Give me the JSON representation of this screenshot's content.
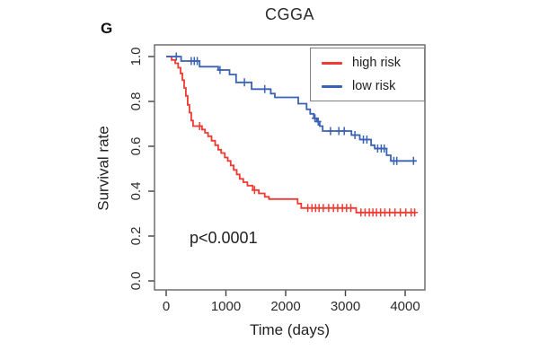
{
  "panel_label": "G",
  "colors": {
    "high_risk": "#EE3B33",
    "low_risk": "#3A62B4",
    "axis_box": "#6F6F6F",
    "tick": "#3F3F3F",
    "text": "#2B2B2B",
    "legend_border": "#7F7F7F",
    "background": "#FFFFFF"
  },
  "chart_data": {
    "type": "line",
    "subtype": "kaplan-meier-survival",
    "title": "CGGA",
    "xlabel": "Time (days)",
    "ylabel": "Survival rate",
    "xlim": [
      0,
      4330
    ],
    "ylim": [
      -0.04,
      1.05
    ],
    "xticks": [
      0,
      1000,
      2000,
      3000,
      4000
    ],
    "xtick_labels": [
      "0",
      "1000",
      "2000",
      "3000",
      "4000"
    ],
    "yticks": [
      0.0,
      0.2,
      0.4,
      0.6,
      0.8,
      1.0
    ],
    "ytick_labels": [
      "0.0",
      "0.2",
      "0.4",
      "0.6",
      "0.8",
      "1.0"
    ],
    "grid": false,
    "legend_position": "top-right",
    "annotations": [
      {
        "text": "p<0.0001",
        "x_days": 380,
        "y_rate": 0.17
      }
    ],
    "series": [
      {
        "name": "high risk",
        "color": "#EE3B33",
        "end_time": 4180,
        "points": [
          [
            0,
            1.0
          ],
          [
            90,
            0.985
          ],
          [
            150,
            0.97
          ],
          [
            200,
            0.95
          ],
          [
            240,
            0.925
          ],
          [
            270,
            0.895
          ],
          [
            300,
            0.86
          ],
          [
            330,
            0.825
          ],
          [
            360,
            0.785
          ],
          [
            390,
            0.75
          ],
          [
            420,
            0.715
          ],
          [
            450,
            0.69
          ],
          [
            600,
            0.675
          ],
          [
            650,
            0.66
          ],
          [
            700,
            0.645
          ],
          [
            760,
            0.625
          ],
          [
            820,
            0.605
          ],
          [
            870,
            0.585
          ],
          [
            920,
            0.57
          ],
          [
            980,
            0.55
          ],
          [
            1030,
            0.535
          ],
          [
            1080,
            0.515
          ],
          [
            1130,
            0.495
          ],
          [
            1180,
            0.475
          ],
          [
            1230,
            0.455
          ],
          [
            1290,
            0.44
          ],
          [
            1360,
            0.425
          ],
          [
            1450,
            0.405
          ],
          [
            1550,
            0.39
          ],
          [
            1650,
            0.375
          ],
          [
            1720,
            0.365
          ],
          [
            2200,
            0.345
          ],
          [
            2260,
            0.325
          ],
          [
            3180,
            0.305
          ]
        ],
        "censors": [
          [
            560,
            0.69
          ],
          [
            1480,
            0.405
          ],
          [
            2370,
            0.325
          ],
          [
            2440,
            0.325
          ],
          [
            2500,
            0.325
          ],
          [
            2560,
            0.325
          ],
          [
            2630,
            0.325
          ],
          [
            2720,
            0.325
          ],
          [
            2800,
            0.325
          ],
          [
            2870,
            0.325
          ],
          [
            2950,
            0.325
          ],
          [
            3020,
            0.325
          ],
          [
            3090,
            0.325
          ],
          [
            3260,
            0.305
          ],
          [
            3330,
            0.305
          ],
          [
            3400,
            0.305
          ],
          [
            3460,
            0.305
          ],
          [
            3520,
            0.305
          ],
          [
            3590,
            0.305
          ],
          [
            3660,
            0.305
          ],
          [
            3740,
            0.305
          ],
          [
            3830,
            0.305
          ],
          [
            3920,
            0.305
          ],
          [
            4010,
            0.305
          ],
          [
            4100,
            0.305
          ],
          [
            4160,
            0.305
          ]
        ]
      },
      {
        "name": "low risk",
        "color": "#3A62B4",
        "end_time": 4190,
        "points": [
          [
            0,
            1.0
          ],
          [
            250,
            0.98
          ],
          [
            560,
            0.955
          ],
          [
            870,
            0.94
          ],
          [
            1060,
            0.92
          ],
          [
            1170,
            0.885
          ],
          [
            1430,
            0.855
          ],
          [
            1750,
            0.835
          ],
          [
            1820,
            0.818
          ],
          [
            2210,
            0.79
          ],
          [
            2350,
            0.765
          ],
          [
            2410,
            0.745
          ],
          [
            2470,
            0.725
          ],
          [
            2520,
            0.71
          ],
          [
            2570,
            0.69
          ],
          [
            2620,
            0.668
          ],
          [
            3100,
            0.65
          ],
          [
            3240,
            0.63
          ],
          [
            3430,
            0.605
          ],
          [
            3490,
            0.59
          ],
          [
            3690,
            0.56
          ],
          [
            3760,
            0.535
          ]
        ],
        "censors": [
          [
            170,
            1.0
          ],
          [
            420,
            0.98
          ],
          [
            470,
            0.98
          ],
          [
            520,
            0.98
          ],
          [
            900,
            0.94
          ],
          [
            1310,
            0.885
          ],
          [
            1650,
            0.855
          ],
          [
            2490,
            0.725
          ],
          [
            2545,
            0.71
          ],
          [
            2750,
            0.668
          ],
          [
            2890,
            0.668
          ],
          [
            2980,
            0.668
          ],
          [
            3160,
            0.65
          ],
          [
            3300,
            0.63
          ],
          [
            3360,
            0.63
          ],
          [
            3540,
            0.59
          ],
          [
            3600,
            0.59
          ],
          [
            3650,
            0.59
          ],
          [
            3810,
            0.535
          ],
          [
            3860,
            0.535
          ],
          [
            4140,
            0.535
          ]
        ]
      }
    ]
  }
}
